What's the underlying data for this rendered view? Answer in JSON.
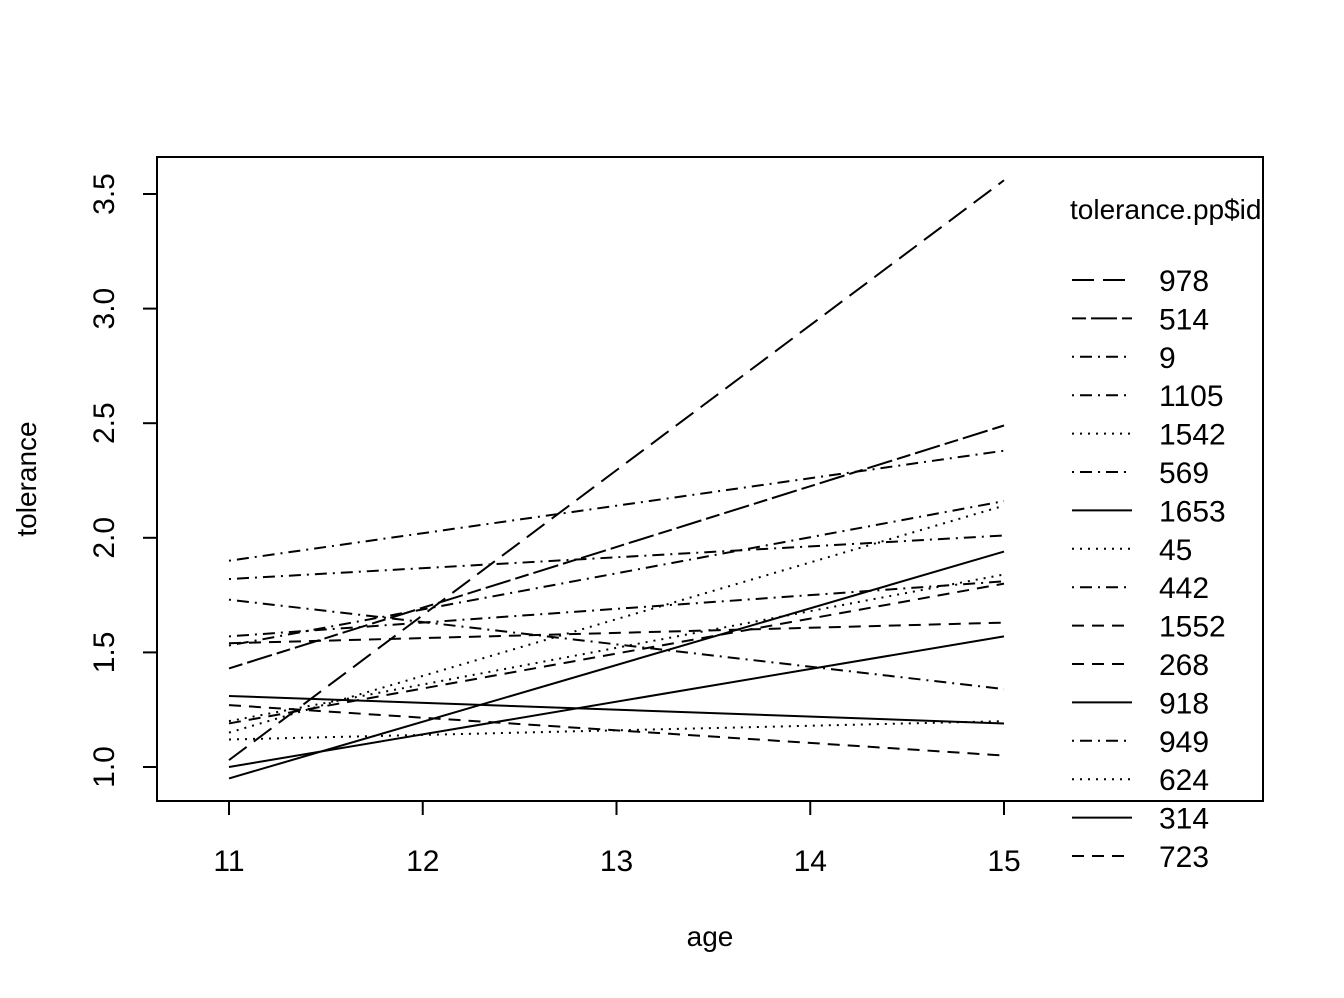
{
  "chart_data": {
    "type": "line",
    "title": "",
    "xlabel": "age",
    "ylabel": "tolerance",
    "xlim": [
      11,
      15
    ],
    "ylim": [
      0.95,
      3.56
    ],
    "x_ticks": [
      "11",
      "12",
      "13",
      "14",
      "15"
    ],
    "y_ticks": [
      "1.0",
      "1.5",
      "2.0",
      "2.5",
      "3.0",
      "3.5"
    ],
    "x_tick_values": [
      11,
      12,
      13,
      14,
      15
    ],
    "y_tick_values": [
      1.0,
      1.5,
      2.0,
      2.5,
      3.0,
      3.5
    ],
    "grid": false,
    "legend": {
      "title": "tolerance.pp$id",
      "placement": "right"
    },
    "series": [
      {
        "name": "978",
        "dash": "longdash",
        "x": [
          11,
          15
        ],
        "y": [
          1.03,
          3.56
        ]
      },
      {
        "name": "514",
        "dash": "twodash",
        "x": [
          11,
          15
        ],
        "y": [
          1.43,
          2.49
        ]
      },
      {
        "name": "9",
        "dash": "dotdash",
        "x": [
          11,
          15
        ],
        "y": [
          1.9,
          2.38
        ]
      },
      {
        "name": "1105",
        "dash": "dotdash",
        "x": [
          11,
          15
        ],
        "y": [
          1.53,
          2.16
        ]
      },
      {
        "name": "1542",
        "dash": "dotted",
        "x": [
          11,
          15
        ],
        "y": [
          1.15,
          2.14
        ]
      },
      {
        "name": "569",
        "dash": "dotdash",
        "x": [
          11,
          15
        ],
        "y": [
          1.82,
          2.01
        ]
      },
      {
        "name": "1653",
        "dash": "solid",
        "x": [
          11,
          15
        ],
        "y": [
          0.95,
          1.94
        ]
      },
      {
        "name": "45",
        "dash": "dotted",
        "x": [
          11,
          15
        ],
        "y": [
          1.2,
          1.84
        ]
      },
      {
        "name": "442",
        "dash": "dotdash",
        "x": [
          11,
          15
        ],
        "y": [
          1.57,
          1.81
        ]
      },
      {
        "name": "1552",
        "dash": "dashed",
        "x": [
          11,
          15
        ],
        "y": [
          1.19,
          1.8
        ]
      },
      {
        "name": "268",
        "dash": "dashed",
        "x": [
          11,
          15
        ],
        "y": [
          1.54,
          1.63
        ]
      },
      {
        "name": "918",
        "dash": "solid",
        "x": [
          11,
          15
        ],
        "y": [
          1.0,
          1.57
        ]
      },
      {
        "name": "949",
        "dash": "dotdash",
        "x": [
          11,
          15
        ],
        "y": [
          1.73,
          1.34
        ]
      },
      {
        "name": "624",
        "dash": "dotted",
        "x": [
          11,
          15
        ],
        "y": [
          1.12,
          1.2
        ]
      },
      {
        "name": "314",
        "dash": "solid",
        "x": [
          11,
          15
        ],
        "y": [
          1.31,
          1.19
        ]
      },
      {
        "name": "723",
        "dash": "dashed",
        "x": [
          11,
          15
        ],
        "y": [
          1.27,
          1.05
        ]
      }
    ]
  }
}
